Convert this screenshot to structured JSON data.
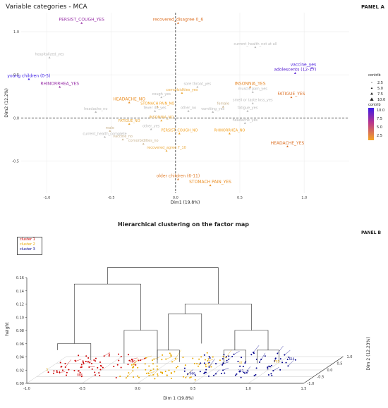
{
  "panelA": {
    "title": "Variable categories - MCA",
    "panel_label": "PANEL A",
    "legend": {
      "size_title": "contrib",
      "size_values": [
        "2.5",
        "5.0",
        "7.5",
        "10.0"
      ],
      "color_title": "contrib",
      "color_ticks": [
        "10.0",
        "7.5",
        "5.0",
        "2.5"
      ],
      "color_low": "#f5a623",
      "color_high": "#3a1be8"
    }
  },
  "panelB": {
    "title": "Hierarchical clustering on the factor map",
    "panel_label": "PANEL B",
    "legend": [
      {
        "label": "cluster 1",
        "color": "#cc0000"
      },
      {
        "label": "cluster 2",
        "color": "#e8a800"
      },
      {
        "label": "cluster 3",
        "color": "#00008b"
      }
    ]
  },
  "chart_data": [
    {
      "type": "scatter",
      "title": "Variable categories - MCA",
      "xlabel": "Dim1 (19.8%)",
      "ylabel": "Dim2 (12.2%)",
      "xlim": [
        -1.2,
        1.35
      ],
      "ylim": [
        -0.87,
        1.22
      ],
      "xticks": [
        -1.0,
        -0.5,
        0.0,
        0.5,
        1.0
      ],
      "yticks": [
        -0.5,
        0.0,
        0.5,
        1.0
      ],
      "xtick_labels": [
        "-1.0",
        "-0.5",
        "0.0",
        "0.5",
        "1.0"
      ],
      "ytick_labels": [
        "-0.5",
        "0.0",
        "0.5",
        "1.0"
      ],
      "grid": true,
      "points": [
        {
          "label": "PERSIST_COUGH_YES",
          "x": -0.73,
          "y": 1.1,
          "contrib": 7.5
        },
        {
          "label": "recovered_disagree 0_6",
          "x": 0.02,
          "y": 1.1,
          "contrib": 6.0
        },
        {
          "label": "current_health_not at all",
          "x": 0.62,
          "y": 0.82,
          "contrib": 1.5
        },
        {
          "label": "hospitalized_yes",
          "x": -0.98,
          "y": 0.7,
          "contrib": 1.5
        },
        {
          "label": "vaccine_yes",
          "x": 1.06,
          "y": 0.58,
          "contrib": 10.0
        },
        {
          "label": "adolescents (12-17)",
          "x": 0.93,
          "y": 0.52,
          "contrib": 9.5
        },
        {
          "label": "young children (0-5)",
          "x": -1.14,
          "y": 0.45,
          "contrib": 10.5
        },
        {
          "label": "RHINORRHEA_YES",
          "x": -0.9,
          "y": 0.36,
          "contrib": 7.5
        },
        {
          "label": "sore throat_yes",
          "x": 0.17,
          "y": 0.36,
          "contrib": 1.5
        },
        {
          "label": "INSONNIA_YES",
          "x": 0.58,
          "y": 0.36,
          "contrib": 5.0
        },
        {
          "label": "comorbidities_yes",
          "x": 0.05,
          "y": 0.29,
          "contrib": 3.0
        },
        {
          "label": "muscle pain_yes",
          "x": 0.6,
          "y": 0.3,
          "contrib": 1.5
        },
        {
          "label": "FATIGUE_YES",
          "x": 0.9,
          "y": 0.24,
          "contrib": 6.0
        },
        {
          "label": "cough_yes",
          "x": -0.11,
          "y": 0.24,
          "contrib": 1.5
        },
        {
          "label": "HEADACHE_NO",
          "x": -0.36,
          "y": 0.18,
          "contrib": 4.5
        },
        {
          "label": "STOMACH PAIN_NO",
          "x": -0.14,
          "y": 0.13,
          "contrib": 3.5
        },
        {
          "label": "female",
          "x": 0.37,
          "y": 0.13,
          "contrib": 2.0
        },
        {
          "label": "smell or taste loss_yes",
          "x": 0.6,
          "y": 0.17,
          "contrib": 1.5
        },
        {
          "label": "headache_no",
          "x": -0.62,
          "y": 0.07,
          "contrib": 1.5
        },
        {
          "label": "fever 38_yes",
          "x": -0.16,
          "y": 0.08,
          "contrib": 1.5
        },
        {
          "label": "other_no",
          "x": 0.1,
          "y": 0.08,
          "contrib": 1.5
        },
        {
          "label": "vomiting_yes",
          "x": 0.29,
          "y": 0.07,
          "contrib": 1.5
        },
        {
          "label": "fatigue_yes",
          "x": 0.56,
          "y": 0.08,
          "contrib": 1.5
        },
        {
          "label": "INSONNIA_NO",
          "x": -0.11,
          "y": -0.03,
          "contrib": 3.0
        },
        {
          "label": "FATIGUE_NO",
          "x": -0.36,
          "y": -0.07,
          "contrib": 3.0
        },
        {
          "label": "headache_yes",
          "x": 0.54,
          "y": -0.06,
          "contrib": 1.5
        },
        {
          "label": "male",
          "x": -0.51,
          "y": -0.15,
          "contrib": 2.0
        },
        {
          "label": "other_yes",
          "x": -0.19,
          "y": -0.13,
          "contrib": 1.5
        },
        {
          "label": "PERSIST_COUGH_NO",
          "x": 0.03,
          "y": -0.18,
          "contrib": 3.5
        },
        {
          "label": "RHINORRHEA_NO",
          "x": 0.42,
          "y": -0.18,
          "contrib": 3.5
        },
        {
          "label": "current_health_complete",
          "x": -0.55,
          "y": -0.22,
          "contrib": 1.5
        },
        {
          "label": "vaccine_no",
          "x": -0.41,
          "y": -0.25,
          "contrib": 2.0
        },
        {
          "label": "comorbidities_no",
          "x": -0.25,
          "y": -0.3,
          "contrib": 2.0
        },
        {
          "label": "HEADACHE_YES",
          "x": 0.87,
          "y": -0.33,
          "contrib": 6.0
        },
        {
          "label": "recovered_agree 7_10",
          "x": -0.07,
          "y": -0.38,
          "contrib": 3.0
        },
        {
          "label": "older children (6-11)",
          "x": 0.02,
          "y": -0.71,
          "contrib": 5.5
        },
        {
          "label": "STOMACH PAIN_YES",
          "x": 0.27,
          "y": -0.78,
          "contrib": 4.5
        }
      ]
    },
    {
      "type": "scatter",
      "title": "Hierarchical clustering on the factor map",
      "xlabel": "Dim 1 (19.8%)",
      "ylabel": "Dim 2 (12.23%)",
      "zlabel": "height",
      "xlim": [
        -1.0,
        1.5
      ],
      "ylim": [
        -1.0,
        1.0
      ],
      "zlim": [
        0,
        0.16
      ],
      "xticks": [
        -1.0,
        -0.5,
        0.0,
        0.5,
        1.0,
        1.5
      ],
      "yticks": [
        -1.0,
        -0.5,
        0.0,
        0.5,
        1.0
      ],
      "zticks": [
        0.0,
        0.02,
        0.04,
        0.06,
        0.08,
        0.1,
        0.12,
        0.14,
        0.16
      ],
      "xtick_labels": [
        "-1.0",
        "-0.5",
        "0.0",
        "0.5",
        "1.0",
        "1.5"
      ],
      "ytick_labels": [
        "-1.0",
        "-0.5",
        "0.0",
        "0.5",
        "1.0"
      ],
      "ztick_labels": [
        "0.00",
        "0.02",
        "0.04",
        "0.06",
        "0.08",
        "0.10",
        "0.12",
        "0.14",
        "0.16"
      ],
      "series": [
        {
          "name": "cluster 1",
          "x_range": [
            -0.9,
            -0.2
          ],
          "count": 70
        },
        {
          "name": "cluster 2",
          "x_range": [
            -0.3,
            0.5
          ],
          "count": 80
        },
        {
          "name": "cluster 3",
          "x_range": [
            0.3,
            1.2
          ],
          "count": 80
        }
      ],
      "dendrogram": {
        "root_height": 0.155,
        "merge_heights": [
          0.155,
          0.13,
          0.1,
          0.085,
          0.06,
          0.04,
          0.03
        ]
      },
      "point_labels": [
        "450",
        "705",
        "387",
        "1",
        "5",
        "666",
        "888",
        "47",
        "616"
      ]
    }
  ]
}
